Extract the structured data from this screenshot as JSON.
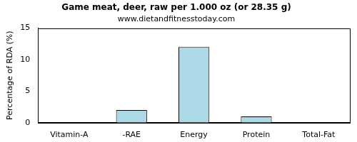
{
  "chart_data": {
    "type": "bar",
    "title": "Game meat, deer, raw per 1.000 oz (or 28.35 g)",
    "subtitle": "www.dietandfitnesstoday.com",
    "y_label": "Percentage of RDA (%)",
    "categories": [
      "Vitamin-A",
      "-RAE",
      "Energy",
      "Protein",
      "Total-Fat"
    ],
    "values": [
      0,
      2,
      12,
      1,
      0
    ],
    "color": "#add8e6",
    "ylim": [
      0,
      15
    ],
    "yticks": [
      0,
      5,
      10,
      15
    ],
    "grid": false
  }
}
